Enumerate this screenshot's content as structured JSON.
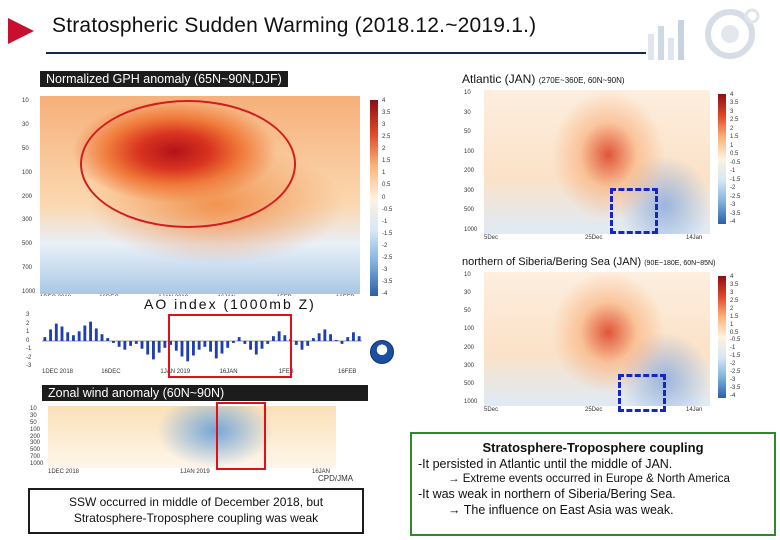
{
  "header": {
    "title": "Stratospheric Sudden Warming (2018.12.~2019.1.)"
  },
  "gph_panel": {
    "label": "Normalized GPH anomaly (65N~90N,DJF)",
    "colorbar_ticks": [
      "4",
      "3.5",
      "3",
      "2.5",
      "2",
      "1.5",
      "1",
      "0.5",
      "0",
      "-0.5",
      "-1",
      "-1.5",
      "-2",
      "-2.5",
      "-3",
      "-3.5",
      "-4"
    ],
    "y_ticks": [
      "10",
      "30",
      "50",
      "100",
      "200",
      "300",
      "500",
      "700",
      "1000"
    ],
    "x_ticks": [
      "1DEC 2018",
      "16DEC",
      "1JAN 2019",
      "16JAN",
      "1FEB",
      "16FEB"
    ]
  },
  "ao_panel": {
    "title": "AO index (1000mb Z)",
    "y_ticks": [
      "3",
      "2",
      "1",
      "0",
      "-1",
      "-2",
      "-3"
    ],
    "x_ticks": [
      "1DEC 2018",
      "16DEC",
      "1JAN 2019",
      "16JAN",
      "1FEB",
      "16FEB"
    ],
    "values": [
      0.4,
      1.2,
      1.8,
      1.5,
      0.9,
      0.6,
      1.0,
      1.6,
      2.0,
      1.3,
      0.7,
      0.3,
      -0.2,
      -0.6,
      -0.9,
      -0.5,
      -0.3,
      -0.8,
      -1.4,
      -1.9,
      -1.2,
      -0.7,
      -0.4,
      -1.0,
      -1.6,
      -2.1,
      -1.5,
      -0.9,
      -0.6,
      -1.1,
      -1.8,
      -1.3,
      -0.7,
      -0.2,
      0.4,
      -0.3,
      -0.9,
      -1.4,
      -0.8,
      -0.3,
      0.5,
      1.0,
      0.6,
      0.2,
      -0.4,
      -0.9,
      -0.5,
      0.3,
      0.8,
      1.2,
      0.7,
      0.1,
      -0.3,
      0.4,
      0.9,
      0.5
    ]
  },
  "atlantic_panel": {
    "label": "Atlantic (JAN)",
    "region": "(270E~360E, 60N~90N)",
    "y_ticks": [
      "10",
      "30",
      "50",
      "100",
      "200",
      "300",
      "500",
      "1000"
    ],
    "x_ticks": [
      "5Dec",
      "25Dec",
      "14Jan"
    ],
    "colorbar_ticks": [
      "4",
      "3.5",
      "3",
      "2.5",
      "2",
      "1.5",
      "1",
      "0.5",
      "-0.5",
      "-1",
      "-1.5",
      "-2",
      "-2.5",
      "-3",
      "-3.5",
      "-4"
    ]
  },
  "siberia_panel": {
    "label": "northern of Siberia/Bering Sea (JAN)",
    "region": "(90E~180E, 60N~85N)",
    "y_ticks": [
      "10",
      "30",
      "50",
      "100",
      "200",
      "300",
      "500",
      "1000"
    ],
    "x_ticks": [
      "5Dec",
      "25Dec",
      "14Jan"
    ],
    "colorbar_ticks": [
      "4",
      "3.5",
      "3",
      "2.5",
      "2",
      "1.5",
      "1",
      "0.5",
      "-0.5",
      "-1",
      "-1.5",
      "-2",
      "-2.5",
      "-3",
      "-3.5",
      "-4"
    ]
  },
  "wind_panel": {
    "label": "Zonal wind anomaly (60N~90N)",
    "y_ticks": [
      "10",
      "30",
      "50",
      "100",
      "200",
      "300",
      "500",
      "700",
      "1000"
    ],
    "x_ticks": [
      "1DEC 2018",
      "1JAN 2019",
      "16JAN"
    ],
    "credit": "CPD/JMA"
  },
  "ssw_note": {
    "line1": "SSW occurred in middle of December 2018, but",
    "line2": "Stratosphere-Troposphere coupling was weak"
  },
  "coupling_note": {
    "title": "Stratosphere-Troposphere coupling",
    "line1": "-It persisted in Atlantic until the middle of JAN.",
    "line2": "→ Extreme events occurred in Europe & North America",
    "line3": "-It was weak in northern of Siberia/Bering Sea.",
    "line4": "→ The influence on East Asia was weak."
  },
  "colors": {
    "accent_red": "#e0101a",
    "dash_blue": "#1426c8",
    "box_green": "#2c8a2c",
    "rule_navy": "#0d2a4a"
  }
}
